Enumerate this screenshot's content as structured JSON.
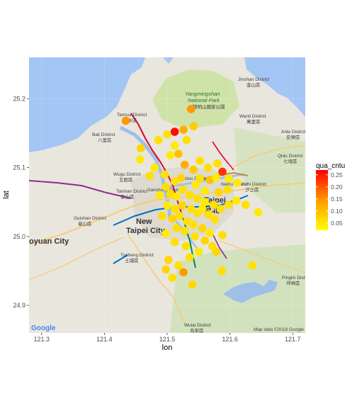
{
  "chart_data": {
    "type": "scatter",
    "title": "",
    "xlabel": "lon",
    "ylabel": "lat",
    "xlim": [
      121.28,
      121.72
    ],
    "ylim": [
      24.86,
      25.26
    ],
    "x_ticks": [
      "121.3",
      "121.4",
      "121.5",
      "121.6",
      "121.7"
    ],
    "y_ticks": [
      "24.9",
      "25.0",
      "25.1",
      "25.2"
    ],
    "x_tick_values": [
      121.3,
      121.4,
      121.5,
      121.6,
      121.7
    ],
    "y_tick_values": [
      24.9,
      25.0,
      25.1,
      25.2
    ],
    "grid": true,
    "legend": {
      "title": "qua_cntu",
      "placement": "right",
      "ticks": [
        "0.25",
        "0.20",
        "0.15",
        "0.10",
        "0.05"
      ],
      "tick_values": [
        0.25,
        0.2,
        0.15,
        0.1,
        0.05
      ],
      "range": [
        0.02,
        0.27
      ],
      "color_low": "#FFFF00",
      "color_high": "#FF0000"
    },
    "points": [
      {
        "lon": 121.434,
        "lat": 25.168,
        "q": 0.12
      },
      {
        "lon": 121.512,
        "lat": 25.152,
        "q": 0.26
      },
      {
        "lon": 121.526,
        "lat": 25.155,
        "q": 0.1
      },
      {
        "lon": 121.542,
        "lat": 25.16,
        "q": 0.07
      },
      {
        "lon": 121.538,
        "lat": 25.185,
        "q": 0.12
      },
      {
        "lon": 121.5,
        "lat": 25.148,
        "q": 0.05
      },
      {
        "lon": 121.486,
        "lat": 25.14,
        "q": 0.05
      },
      {
        "lon": 121.458,
        "lat": 25.128,
        "q": 0.06
      },
      {
        "lon": 121.505,
        "lat": 25.118,
        "q": 0.04
      },
      {
        "lon": 121.518,
        "lat": 25.12,
        "q": 0.08
      },
      {
        "lon": 121.531,
        "lat": 25.14,
        "q": 0.05
      },
      {
        "lon": 121.512,
        "lat": 25.132,
        "q": 0.04
      },
      {
        "lon": 121.552,
        "lat": 25.11,
        "q": 0.05
      },
      {
        "lon": 121.542,
        "lat": 25.097,
        "q": 0.07
      },
      {
        "lon": 121.528,
        "lat": 25.104,
        "q": 0.1
      },
      {
        "lon": 121.588,
        "lat": 25.094,
        "q": 0.22
      },
      {
        "lon": 121.58,
        "lat": 25.106,
        "q": 0.05
      },
      {
        "lon": 121.565,
        "lat": 25.1,
        "q": 0.05
      },
      {
        "lon": 121.552,
        "lat": 25.084,
        "q": 0.05
      },
      {
        "lon": 121.568,
        "lat": 25.082,
        "q": 0.08
      },
      {
        "lon": 121.578,
        "lat": 25.086,
        "q": 0.04
      },
      {
        "lon": 121.598,
        "lat": 25.084,
        "q": 0.04
      },
      {
        "lon": 121.612,
        "lat": 25.078,
        "q": 0.04
      },
      {
        "lon": 121.596,
        "lat": 25.068,
        "q": 0.05
      },
      {
        "lon": 121.582,
        "lat": 25.064,
        "q": 0.06
      },
      {
        "lon": 121.56,
        "lat": 25.066,
        "q": 0.04
      },
      {
        "lon": 121.545,
        "lat": 25.075,
        "q": 0.04
      },
      {
        "lon": 121.522,
        "lat": 25.085,
        "q": 0.06
      },
      {
        "lon": 121.512,
        "lat": 25.08,
        "q": 0.05
      },
      {
        "lon": 121.498,
        "lat": 25.072,
        "q": 0.05
      },
      {
        "lon": 121.488,
        "lat": 25.06,
        "q": 0.04
      },
      {
        "lon": 121.505,
        "lat": 25.062,
        "q": 0.05
      },
      {
        "lon": 121.515,
        "lat": 25.058,
        "q": 0.04
      },
      {
        "lon": 121.525,
        "lat": 25.068,
        "q": 0.05
      },
      {
        "lon": 121.536,
        "lat": 25.06,
        "q": 0.05
      },
      {
        "lon": 121.548,
        "lat": 25.055,
        "q": 0.05
      },
      {
        "lon": 121.56,
        "lat": 25.05,
        "q": 0.04
      },
      {
        "lon": 121.574,
        "lat": 25.046,
        "q": 0.05
      },
      {
        "lon": 121.585,
        "lat": 25.04,
        "q": 0.05
      },
      {
        "lon": 121.598,
        "lat": 25.046,
        "q": 0.05
      },
      {
        "lon": 121.61,
        "lat": 25.052,
        "q": 0.04
      },
      {
        "lon": 121.625,
        "lat": 25.046,
        "q": 0.05
      },
      {
        "lon": 121.645,
        "lat": 25.035,
        "q": 0.04
      },
      {
        "lon": 121.5,
        "lat": 25.045,
        "q": 0.04
      },
      {
        "lon": 121.512,
        "lat": 25.04,
        "q": 0.05
      },
      {
        "lon": 121.524,
        "lat": 25.045,
        "q": 0.06
      },
      {
        "lon": 121.538,
        "lat": 25.04,
        "q": 0.05
      },
      {
        "lon": 121.548,
        "lat": 25.034,
        "q": 0.05
      },
      {
        "lon": 121.556,
        "lat": 25.04,
        "q": 0.04
      },
      {
        "lon": 121.566,
        "lat": 25.032,
        "q": 0.05
      },
      {
        "lon": 121.576,
        "lat": 25.025,
        "q": 0.05
      },
      {
        "lon": 121.492,
        "lat": 25.03,
        "q": 0.05
      },
      {
        "lon": 121.508,
        "lat": 25.026,
        "q": 0.06
      },
      {
        "lon": 121.52,
        "lat": 25.03,
        "q": 0.05
      },
      {
        "lon": 121.532,
        "lat": 25.022,
        "q": 0.05
      },
      {
        "lon": 121.542,
        "lat": 25.017,
        "q": 0.05
      },
      {
        "lon": 121.556,
        "lat": 25.012,
        "q": 0.06
      },
      {
        "lon": 121.568,
        "lat": 25.005,
        "q": 0.04
      },
      {
        "lon": 121.588,
        "lat": 25.002,
        "q": 0.05
      },
      {
        "lon": 121.515,
        "lat": 25.012,
        "q": 0.05
      },
      {
        "lon": 121.528,
        "lat": 25.008,
        "q": 0.05
      },
      {
        "lon": 121.544,
        "lat": 25.0,
        "q": 0.05
      },
      {
        "lon": 121.56,
        "lat": 24.994,
        "q": 0.06
      },
      {
        "lon": 121.572,
        "lat": 24.986,
        "q": 0.05
      },
      {
        "lon": 121.512,
        "lat": 24.992,
        "q": 0.05
      },
      {
        "lon": 121.53,
        "lat": 24.986,
        "q": 0.05
      },
      {
        "lon": 121.55,
        "lat": 24.978,
        "q": 0.04
      },
      {
        "lon": 121.578,
        "lat": 24.978,
        "q": 0.06
      },
      {
        "lon": 121.498,
        "lat": 25.004,
        "q": 0.04
      },
      {
        "lon": 121.536,
        "lat": 24.97,
        "q": 0.05
      },
      {
        "lon": 121.502,
        "lat": 24.966,
        "q": 0.06
      },
      {
        "lon": 121.518,
        "lat": 24.958,
        "q": 0.05
      },
      {
        "lon": 121.498,
        "lat": 24.952,
        "q": 0.06
      },
      {
        "lon": 121.526,
        "lat": 24.948,
        "q": 0.12
      },
      {
        "lon": 121.508,
        "lat": 24.94,
        "q": 0.05
      },
      {
        "lon": 121.54,
        "lat": 24.93,
        "q": 0.06
      },
      {
        "lon": 121.636,
        "lat": 24.958,
        "q": 0.05
      },
      {
        "lon": 121.587,
        "lat": 24.95,
        "q": 0.05
      },
      {
        "lon": 121.457,
        "lat": 25.112,
        "q": 0.04
      },
      {
        "lon": 121.48,
        "lat": 25.1,
        "q": 0.04
      },
      {
        "lon": 121.472,
        "lat": 25.088,
        "q": 0.05
      },
      {
        "lon": 121.496,
        "lat": 25.09,
        "q": 0.05
      }
    ]
  },
  "map": {
    "labels": {
      "jinshan": "Jinshan District",
      "jinshan_zh": "金山區",
      "park": "Yangmingshan",
      "park2": "National Park",
      "park_zh": "陽明山國家公園",
      "tamsui": "Tamsui District",
      "tamsui_zh": "淡水區",
      "bali": "Bali District",
      "bali_zh": "八里區",
      "wanli": "Wanli District",
      "wanli_zh": "萬里區",
      "anle": "Anle District",
      "anle_zh": "安樂區",
      "qidu": "Qidu District",
      "qidu_zh": "七堵區",
      "wugu": "Wugu District",
      "wugu_zh": "五股區",
      "beitou": "Beitou District",
      "taishan": "Taishan District",
      "taishan_zh": "泰山區",
      "sanchong": "Sanchong District",
      "neihu": "Neihu District",
      "xizhi": "Xizhi District",
      "xizhi_zh": "汐止區",
      "taipei": "Taipei",
      "taipei_zh": "台北",
      "new": "New",
      "taipei_city": "Taipei City",
      "guishan": "Guishan District",
      "guishan_zh": "龜山區",
      "taoyuan": "oyuan City",
      "tucheng": "Tucheng District",
      "tucheng_zh": "土城區",
      "pinglin": "Pinglin District",
      "pinglin_zh": "坪林區",
      "wulai": "Wulai District",
      "wulai_zh": "烏來區",
      "google": "Google",
      "attribution": "Map data ©2018 Google"
    },
    "colors": {
      "sea": "#A3C6F5",
      "land": "#E9E6DE",
      "park": "#CFE3A8",
      "forest": "#C8DEB0",
      "urban": "#DAD7CF",
      "river": "#9EC0E8",
      "road": "#F6CC7A",
      "metro_red": "#E3002C",
      "metro_blue": "#0070BD",
      "metro_purple": "#8E2C8C",
      "metro_green": "#008659",
      "metro_brown": "#C48C31"
    }
  }
}
